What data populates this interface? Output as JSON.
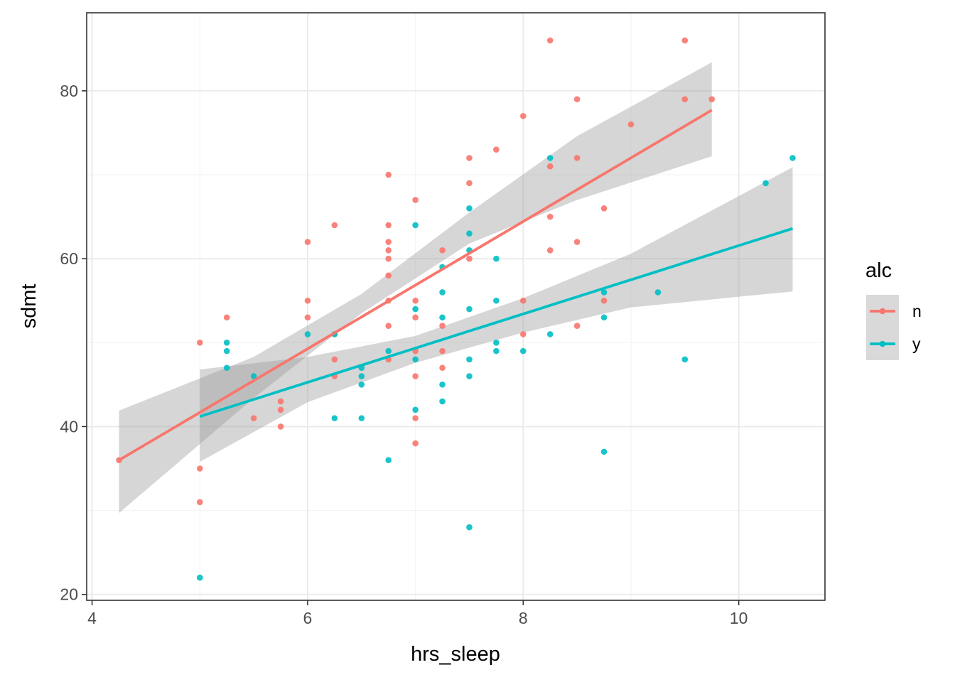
{
  "chart_data": {
    "type": "scatter",
    "title": "",
    "xlabel": "hrs_sleep",
    "ylabel": "sdmt",
    "xlim": [
      3.95,
      10.8
    ],
    "ylim": [
      19.3,
      89.3
    ],
    "x_ticks": [
      4,
      6,
      8,
      10
    ],
    "y_ticks": [
      20,
      40,
      60,
      80
    ],
    "grid": true,
    "legend": {
      "title": "alc",
      "position": "right"
    },
    "series": [
      {
        "name": "n",
        "color": "#F8766D",
        "points": [
          [
            4.25,
            36
          ],
          [
            5,
            50
          ],
          [
            5,
            35
          ],
          [
            5,
            31
          ],
          [
            5.25,
            53
          ],
          [
            5.5,
            41
          ],
          [
            5.75,
            43
          ],
          [
            5.75,
            42
          ],
          [
            5.75,
            40
          ],
          [
            6,
            62
          ],
          [
            6,
            55
          ],
          [
            6,
            53
          ],
          [
            6.25,
            64
          ],
          [
            6.25,
            51
          ],
          [
            6.25,
            48
          ],
          [
            6.25,
            46
          ],
          [
            6.75,
            70
          ],
          [
            6.75,
            64
          ],
          [
            6.75,
            62
          ],
          [
            6.75,
            61
          ],
          [
            6.75,
            60
          ],
          [
            6.75,
            58
          ],
          [
            6.75,
            55
          ],
          [
            6.75,
            52
          ],
          [
            6.75,
            48
          ],
          [
            7,
            67
          ],
          [
            7,
            55
          ],
          [
            7,
            53
          ],
          [
            7,
            49
          ],
          [
            7,
            46
          ],
          [
            7,
            41
          ],
          [
            7,
            38
          ],
          [
            7.25,
            61
          ],
          [
            7.25,
            52
          ],
          [
            7.25,
            49
          ],
          [
            7.25,
            47
          ],
          [
            7.5,
            72
          ],
          [
            7.5,
            69
          ],
          [
            7.5,
            60
          ],
          [
            7.75,
            73
          ],
          [
            8,
            77
          ],
          [
            8,
            55
          ],
          [
            8,
            51
          ],
          [
            8.25,
            86
          ],
          [
            8.25,
            71
          ],
          [
            8.25,
            65
          ],
          [
            8.25,
            61
          ],
          [
            8.5,
            79
          ],
          [
            8.5,
            72
          ],
          [
            8.5,
            62
          ],
          [
            8.5,
            52
          ],
          [
            8.75,
            66
          ],
          [
            8.75,
            55
          ],
          [
            9,
            76
          ],
          [
            9.5,
            86
          ],
          [
            9.5,
            79
          ],
          [
            9.75,
            79
          ]
        ],
        "fit": {
          "x": [
            4.25,
            9.75
          ],
          "y": [
            36.0,
            77.7
          ]
        },
        "ci_lower": [
          [
            4.25,
            29.7
          ],
          [
            5.5,
            43.4
          ],
          [
            6.5,
            53.5
          ],
          [
            7.5,
            61.8
          ],
          [
            8.5,
            67.0
          ],
          [
            9.75,
            72.2
          ]
        ],
        "ci_upper": [
          [
            4.25,
            41.9
          ],
          [
            5.5,
            48.3
          ],
          [
            6.5,
            55.8
          ],
          [
            7.5,
            65.5
          ],
          [
            8.5,
            74.6
          ],
          [
            9.75,
            83.4
          ]
        ]
      },
      {
        "name": "y",
        "color": "#00BFC4",
        "points": [
          [
            5,
            22
          ],
          [
            5.25,
            50
          ],
          [
            5.25,
            49
          ],
          [
            5.25,
            47
          ],
          [
            5.5,
            46
          ],
          [
            6,
            51
          ],
          [
            6.25,
            51
          ],
          [
            6.25,
            41
          ],
          [
            6.5,
            47
          ],
          [
            6.5,
            46
          ],
          [
            6.5,
            45
          ],
          [
            6.5,
            41
          ],
          [
            6.75,
            49
          ],
          [
            6.75,
            36
          ],
          [
            7,
            64
          ],
          [
            7,
            54
          ],
          [
            7,
            48
          ],
          [
            7,
            42
          ],
          [
            7.25,
            59
          ],
          [
            7.25,
            56
          ],
          [
            7.25,
            53
          ],
          [
            7.25,
            45
          ],
          [
            7.25,
            43
          ],
          [
            7.5,
            66
          ],
          [
            7.5,
            63
          ],
          [
            7.5,
            61
          ],
          [
            7.5,
            54
          ],
          [
            7.5,
            48
          ],
          [
            7.5,
            46
          ],
          [
            7.5,
            28
          ],
          [
            7.75,
            60
          ],
          [
            7.75,
            55
          ],
          [
            7.75,
            50
          ],
          [
            7.75,
            49
          ],
          [
            8,
            49
          ],
          [
            8.25,
            72
          ],
          [
            8.25,
            51
          ],
          [
            8.75,
            56
          ],
          [
            8.75,
            53
          ],
          [
            8.75,
            37
          ],
          [
            9.25,
            56
          ],
          [
            9.5,
            48
          ],
          [
            10.25,
            69
          ],
          [
            10.5,
            72
          ]
        ],
        "fit": {
          "x": [
            5,
            10.5
          ],
          "y": [
            41.2,
            63.6
          ]
        },
        "ci_lower": [
          [
            5,
            35.8
          ],
          [
            6,
            42.9
          ],
          [
            7,
            47.6
          ],
          [
            8,
            51.2
          ],
          [
            9,
            54.2
          ],
          [
            10.5,
            56.1
          ]
        ],
        "ci_upper": [
          [
            5,
            46.8
          ],
          [
            6,
            48.3
          ],
          [
            7,
            50.8
          ],
          [
            8,
            55.3
          ],
          [
            9,
            60.6
          ],
          [
            10.5,
            70.9
          ]
        ]
      }
    ]
  }
}
